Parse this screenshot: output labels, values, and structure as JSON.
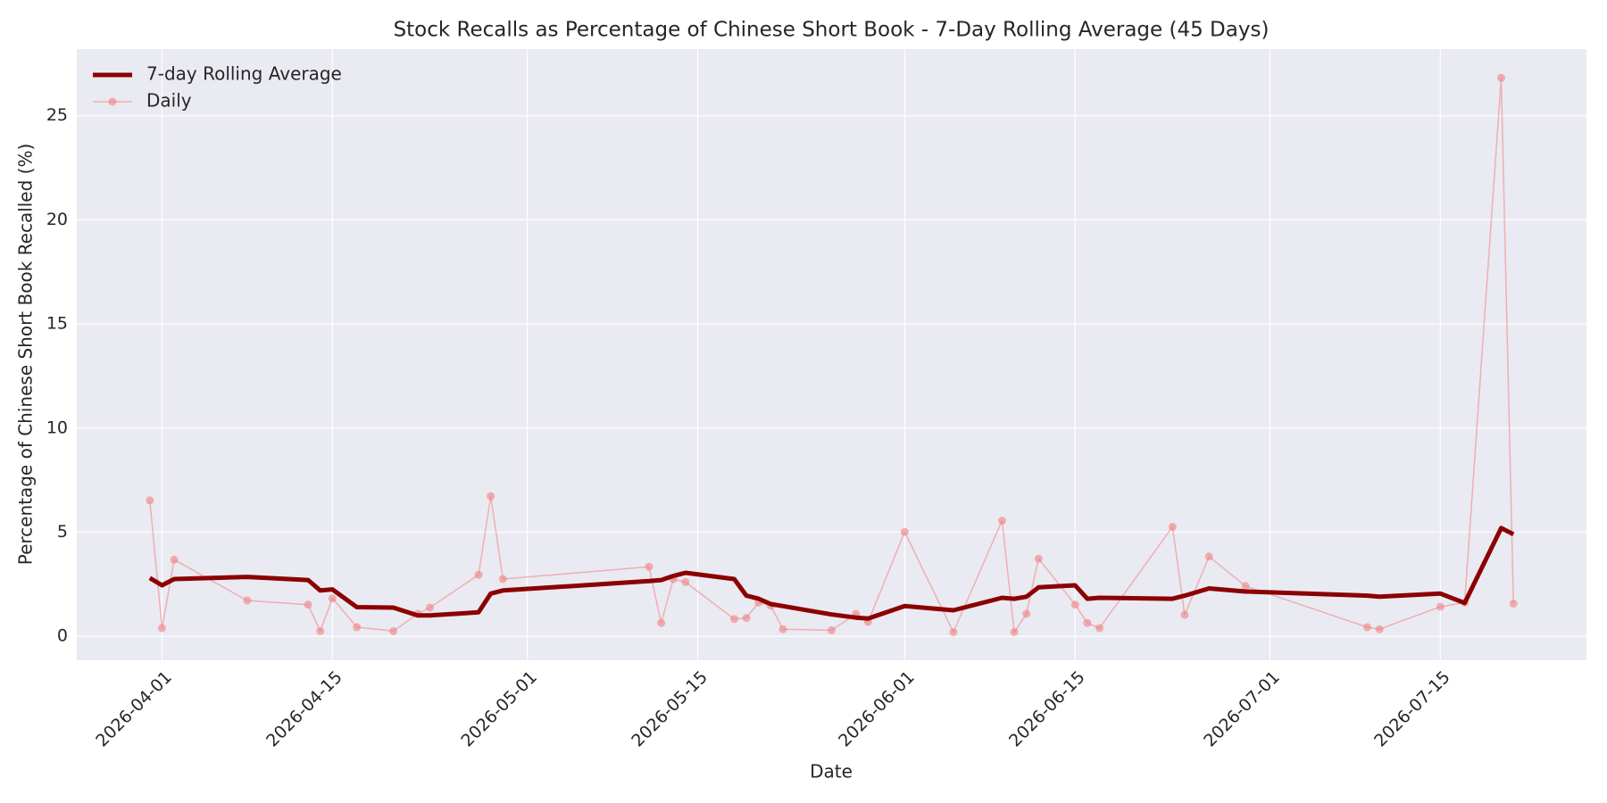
{
  "chart_data": {
    "type": "line",
    "title": "Stock Recalls as Percentage of Chinese Short Book - 7-Day Rolling Average (45 Days)",
    "x_label": "Date",
    "y_label": "Percentage of Chinese Short Book Recalled (%)",
    "x": [
      "2026-03-31",
      "2026-04-01",
      "2026-04-02",
      "2026-04-08",
      "2026-04-13",
      "2026-04-14",
      "2026-04-15",
      "2026-04-17",
      "2026-04-20",
      "2026-04-22",
      "2026-04-23",
      "2026-04-27",
      "2026-04-28",
      "2026-04-29",
      "2026-05-11",
      "2026-05-12",
      "2026-05-13",
      "2026-05-14",
      "2026-05-18",
      "2026-05-19",
      "2026-05-20",
      "2026-05-21",
      "2026-05-22",
      "2026-05-26",
      "2026-05-28",
      "2026-05-29",
      "2026-06-01",
      "2026-06-05",
      "2026-06-09",
      "2026-06-10",
      "2026-06-11",
      "2026-06-12",
      "2026-06-15",
      "2026-06-16",
      "2026-06-17",
      "2026-06-23",
      "2026-06-24",
      "2026-06-26",
      "2026-06-29",
      "2026-07-09",
      "2026-07-10",
      "2026-07-15",
      "2026-07-17",
      "2026-07-20",
      "2026-07-21"
    ],
    "series": [
      {
        "name": "7-day Rolling Average",
        "color": "#8b0000",
        "values": [
          2.8,
          2.45,
          2.75,
          2.85,
          2.7,
          2.2,
          2.25,
          1.4,
          1.38,
          1.0,
          1.0,
          1.15,
          2.05,
          2.2,
          2.65,
          2.7,
          2.9,
          3.05,
          2.75,
          1.95,
          1.8,
          1.55,
          1.45,
          1.05,
          0.9,
          0.85,
          1.45,
          1.25,
          1.85,
          1.8,
          1.9,
          2.35,
          2.45,
          1.8,
          1.85,
          1.8,
          1.95,
          2.3,
          2.15,
          1.95,
          1.9,
          2.05,
          1.6,
          5.2,
          4.9
        ]
      },
      {
        "name": "Daily",
        "color": "#f08080",
        "values": [
          6.53,
          0.39,
          3.68,
          1.72,
          1.52,
          0.25,
          1.82,
          0.44,
          0.25,
          1.08,
          1.38,
          2.95,
          6.73,
          2.75,
          3.34,
          0.64,
          2.75,
          2.6,
          0.83,
          0.88,
          1.62,
          1.47,
          0.34,
          0.29,
          1.08,
          0.69,
          5.01,
          0.2,
          5.55,
          0.2,
          1.08,
          3.73,
          1.52,
          0.64,
          0.39,
          5.26,
          1.03,
          3.83,
          2.41,
          0.44,
          0.34,
          1.42,
          1.62,
          26.82,
          1.57
        ]
      }
    ],
    "xlim": [
      "2026-03-25",
      "2026-07-27"
    ],
    "xticks": [
      "2026-04-01",
      "2026-04-15",
      "2026-05-01",
      "2026-05-15",
      "2026-06-01",
      "2026-06-15",
      "2026-07-01",
      "2026-07-15"
    ],
    "ylim": [
      -1.15,
      28.2
    ],
    "yticks": [
      0,
      5,
      10,
      15,
      20,
      25
    ],
    "grid": true,
    "legend": "upper left"
  }
}
